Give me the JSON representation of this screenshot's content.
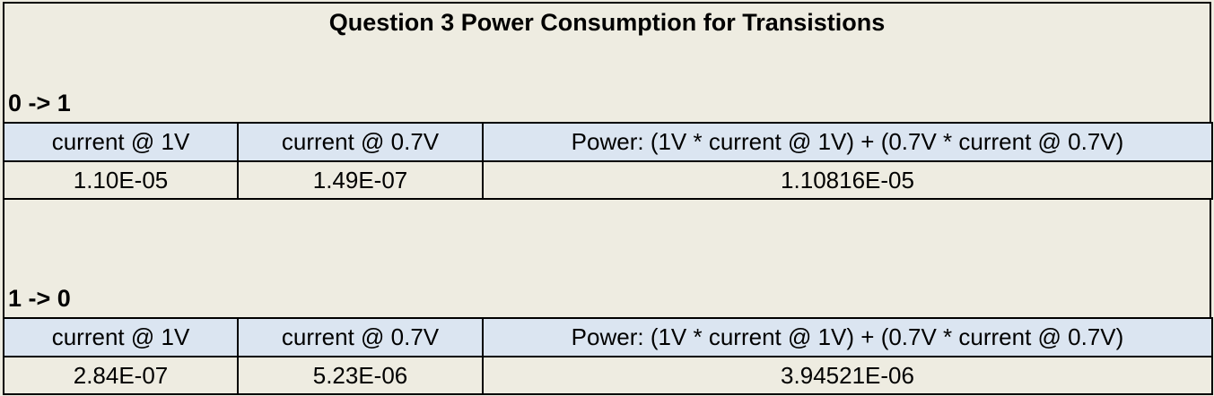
{
  "title": "Question 3 Power Consumption for Transistions",
  "sections": [
    {
      "label": "0 -> 1",
      "headers": [
        "current @ 1V",
        "current @ 0.7V",
        "Power: (1V * current @ 1V) + (0.7V * current @ 0.7V)"
      ],
      "values": [
        "1.10E-05",
        "1.49E-07",
        "1.10816E-05"
      ]
    },
    {
      "label": "1 -> 0",
      "headers": [
        "current @ 1V",
        "current @ 0.7V",
        "Power: (1V * current @ 1V) + (0.7V * current @ 0.7V)"
      ],
      "values": [
        "2.84E-07",
        "5.23E-06",
        "3.94521E-06"
      ]
    }
  ]
}
